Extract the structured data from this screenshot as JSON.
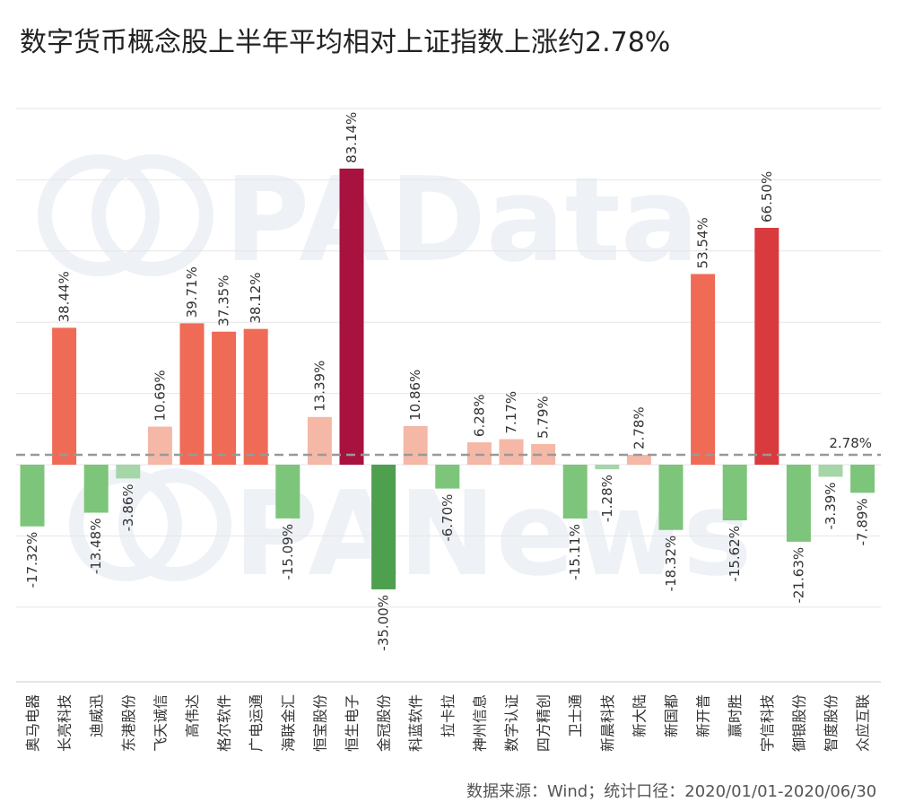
{
  "title": "数字货币概念股上半年平均相对上证指数上涨约2.78%",
  "source": "数据来源：Wind；统计口径：2020/01/01-2020/06/30",
  "watermarks": [
    "PAData",
    "PANews"
  ],
  "chart_data": {
    "type": "bar",
    "title": "数字货币概念股上半年平均相对上证指数上涨约2.78%",
    "categories": [
      "奥马电器",
      "长亮科技",
      "迪威迅",
      "东港股份",
      "飞天诚信",
      "高伟达",
      "格尔软件",
      "广电运通",
      "海联金汇",
      "恒宝股份",
      "恒生电子",
      "金冠股份",
      "科蓝软件",
      "拉卡拉",
      "神州信息",
      "数字认证",
      "四方精创",
      "卫士通",
      "新晨科技",
      "新大陆",
      "新国都",
      "新开普",
      "赢时胜",
      "宇信科技",
      "御银股份",
      "智度股份",
      "众应互联"
    ],
    "values": [
      -17.32,
      38.44,
      -13.48,
      -3.86,
      10.69,
      39.71,
      37.35,
      38.12,
      -15.09,
      13.39,
      83.14,
      -35.0,
      10.86,
      -6.7,
      6.28,
      7.17,
      5.79,
      -15.11,
      -1.28,
      2.78,
      -18.32,
      53.54,
      -15.62,
      66.5,
      -21.63,
      -3.39,
      -7.89
    ],
    "labels": [
      "-17.32%",
      "38.44%",
      "-13.48%",
      "-3.86%",
      "10.69%",
      "39.71%",
      "37.35%",
      "38.12%",
      "-15.09%",
      "13.39%",
      "83.14%",
      "-35.00%",
      "10.86%",
      "-6.70%",
      "6.28%",
      "7.17%",
      "5.79%",
      "-15.11%",
      "-1.28%",
      "2.78%",
      "-18.32%",
      "53.54%",
      "-15.62%",
      "66.50%",
      "-21.63%",
      "-3.39%",
      "-7.89%"
    ],
    "reference_line": {
      "value": 2.78,
      "label": "2.78%"
    },
    "ylim": [
      -60,
      110
    ],
    "grid": true,
    "xlabel": "",
    "ylabel": "",
    "colors": {
      "negative_light": "#a5d6a7",
      "negative_mid": "#7cc57a",
      "negative_dark": "#4e9f4e",
      "positive_light": "#f5b8a6",
      "positive_mid": "#ef6b55",
      "positive_high": "#d93a3e",
      "positive_dark": "#a8123f",
      "reference": "#999999",
      "grid": "#e6e6e6"
    }
  }
}
